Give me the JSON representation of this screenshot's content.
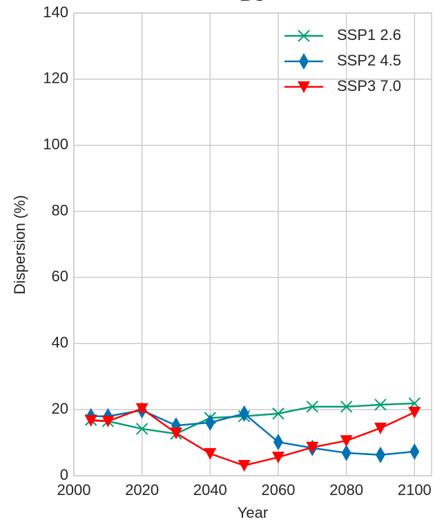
{
  "chart_data": {
    "type": "line",
    "title": "BC",
    "x": [
      2005,
      2010,
      2020,
      2030,
      2040,
      2050,
      2060,
      2070,
      2080,
      2090,
      2100
    ],
    "series": [
      {
        "name": "SSP1 2.6",
        "color": "#029e73",
        "marker": "x",
        "values": [
          16.9,
          16.5,
          14.2,
          12.7,
          17.5,
          18.0,
          18.8,
          20.9,
          20.9,
          21.5,
          21.9
        ]
      },
      {
        "name": "SSP2 4.5",
        "color": "#0072b2",
        "marker": "diamond",
        "values": [
          18.0,
          18.0,
          19.8,
          15.2,
          16.1,
          18.8,
          10.2,
          8.4,
          6.9,
          6.3,
          7.3
        ]
      },
      {
        "name": "SSP3 7.0",
        "color": "#ff0000",
        "marker": "triangle-down",
        "values": [
          16.7,
          16.5,
          20.3,
          12.9,
          6.7,
          3.1,
          5.6,
          8.6,
          10.6,
          14.4,
          19.2
        ]
      }
    ],
    "xlabel": "Year",
    "ylabel": "Dispersion (%)",
    "xlim": [
      2000,
      2105
    ],
    "xticks": [
      2000,
      2020,
      2040,
      2060,
      2080,
      2100
    ],
    "ylim": [
      0,
      140
    ],
    "yticks": [
      0,
      20,
      40,
      60,
      80,
      100,
      120,
      140
    ],
    "grid": true,
    "legend": "upper right"
  }
}
